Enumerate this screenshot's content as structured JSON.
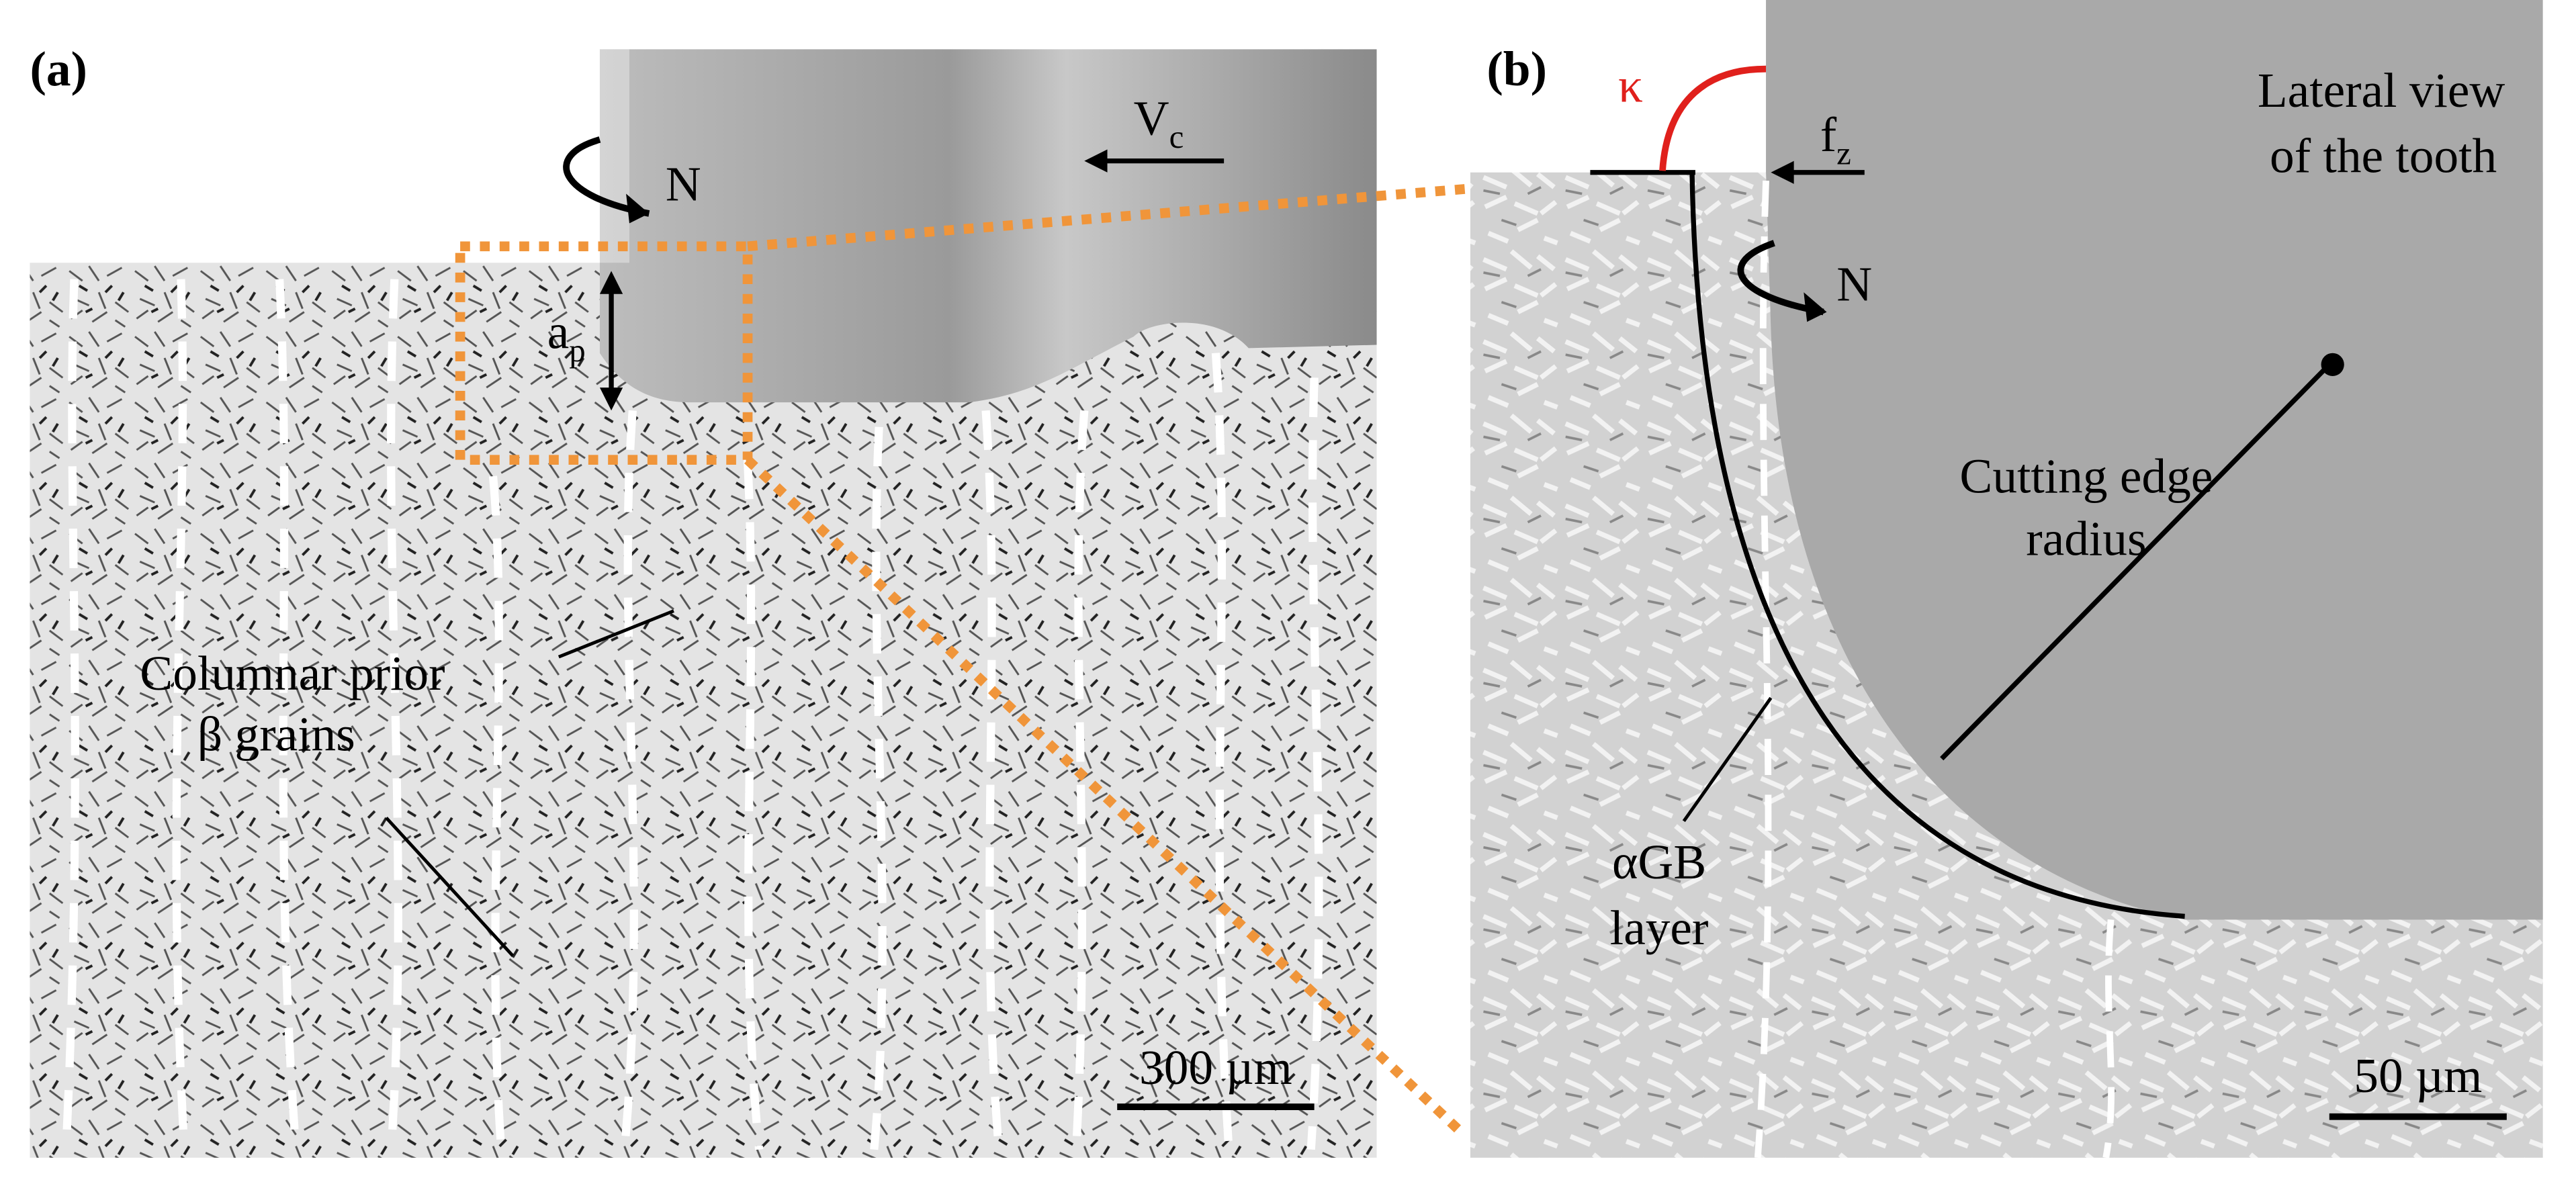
{
  "panels": [
    {
      "label": "(a)",
      "rotation": "N",
      "cutting_speed": {
        "symbol": "V",
        "subscript": "c"
      },
      "depth_of_cut": {
        "symbol": "a",
        "subscript": "p"
      },
      "callout": [
        "Columnar prior",
        "β grains"
      ],
      "scale_bar": "300 µm"
    },
    {
      "label": "(b)",
      "angle": "κ",
      "feed": {
        "symbol": "f",
        "subscript": "z"
      },
      "tool_view": [
        "Lateral view",
        "of the tooth"
      ],
      "rotation": "N",
      "edge_radius": [
        "Cutting edge",
        "radius"
      ],
      "layer": [
        "αGB",
        "layer"
      ],
      "scale_bar": "50 µm"
    }
  ]
}
